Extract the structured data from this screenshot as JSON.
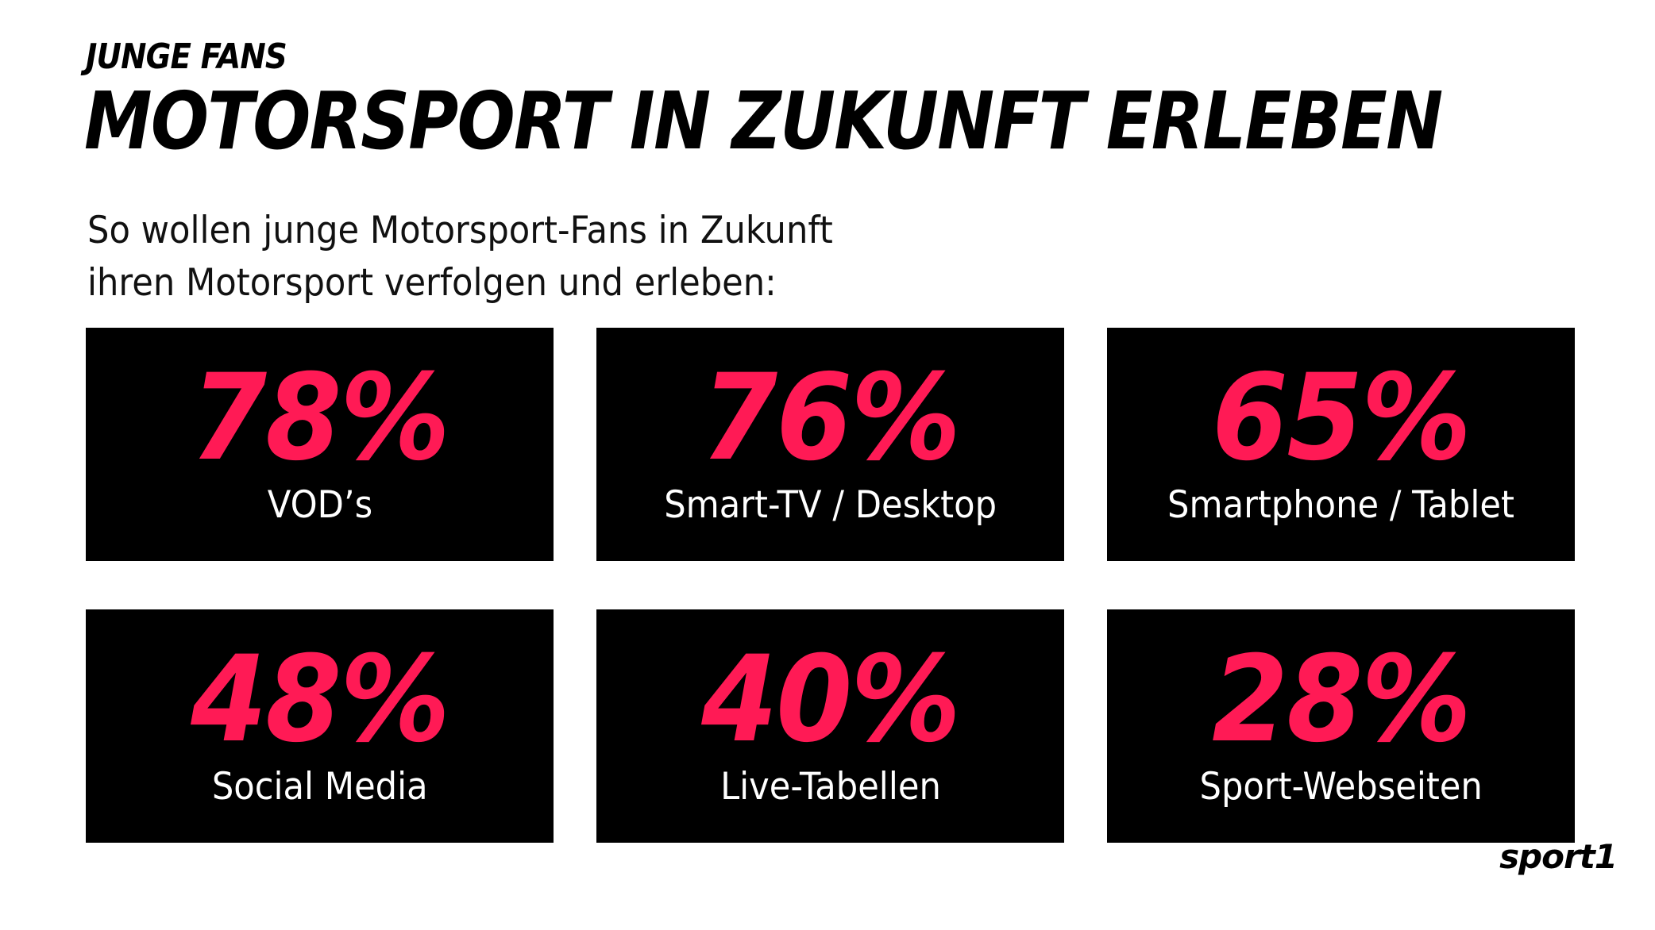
{
  "header": {
    "kicker": "JUNGE FANS",
    "headline": "MOTORSPORT IN ZUKUNFT ERLEBEN"
  },
  "intro": {
    "line1": "So wollen junge Motorsport-Fans in Zukunft",
    "line2": "ihren Motorsport verfolgen und erleben:"
  },
  "stats": [
    {
      "value": "78%",
      "label": "VOD’s"
    },
    {
      "value": "76%",
      "label": "Smart-TV / Desktop"
    },
    {
      "value": "65%",
      "label": "Smartphone / Tablet"
    },
    {
      "value": "48%",
      "label": "Social Media"
    },
    {
      "value": "40%",
      "label": "Live-Tabellen"
    },
    {
      "value": "28%",
      "label": "Sport-Webseiten"
    }
  ],
  "logo": {
    "text": "sport1"
  },
  "colors": {
    "accent": "#ff1a55",
    "card_background": "#000000",
    "page_background": "#ffffff"
  }
}
